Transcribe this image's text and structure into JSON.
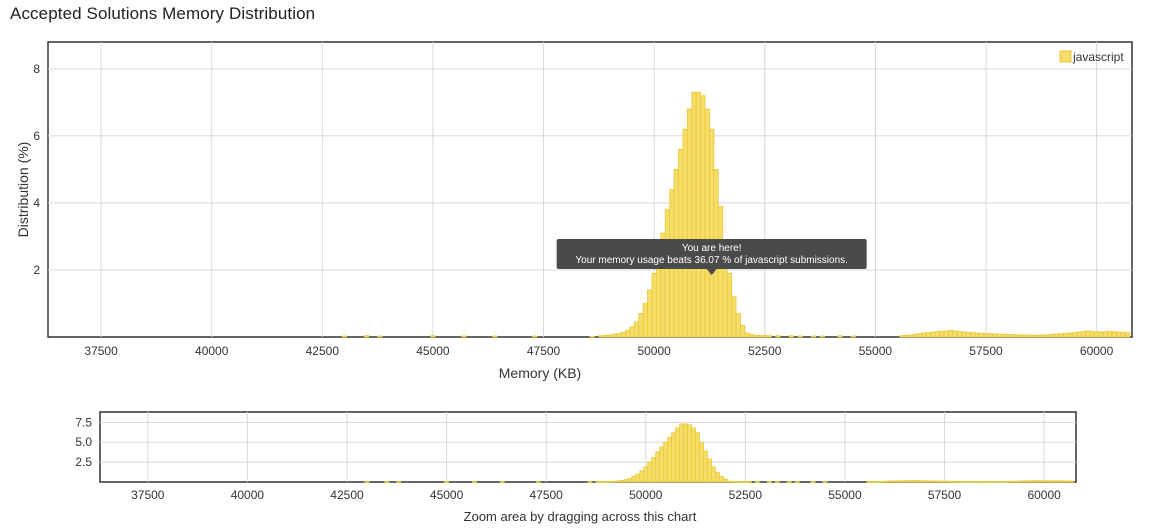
{
  "page": {
    "title": "Accepted Solutions Memory Distribution"
  },
  "chart_data": [
    {
      "type": "bar",
      "name": "main",
      "xlabel": "Memory (KB)",
      "ylabel": "Distribution (%)",
      "xlim": [
        36300,
        60800
      ],
      "ylim": [
        0,
        8.8
      ],
      "x_ticks": [
        37500,
        40000,
        42500,
        45000,
        47500,
        50000,
        52500,
        55000,
        57500,
        60000
      ],
      "y_ticks": [
        2,
        4,
        6,
        8
      ],
      "y_tick_labels": [
        "2",
        "4",
        "6",
        "8"
      ],
      "grid": true,
      "legend": {
        "position": "top-right",
        "entries": [
          "javascript"
        ]
      },
      "bar_color": "#f5dd68",
      "bar_edge_color": "#e8c93a",
      "annotation": {
        "title": "You are here!",
        "text": "Your memory usage beats 36.07 % of javascript submissions.",
        "x": 51300
      },
      "series": [
        {
          "name": "javascript",
          "bin_width": 100,
          "x": [
            43000,
            43500,
            43800,
            45000,
            45700,
            46400,
            47300,
            48600,
            48800,
            48900,
            49000,
            49100,
            49200,
            49300,
            49400,
            49500,
            49600,
            49700,
            49800,
            49900,
            50000,
            50100,
            50200,
            50300,
            50400,
            50500,
            50600,
            50700,
            50800,
            50900,
            51000,
            51100,
            51200,
            51300,
            51400,
            51500,
            51600,
            51700,
            51800,
            51900,
            52000,
            52100,
            52200,
            52300,
            52400,
            52500,
            52600,
            52800,
            53100,
            53300,
            53600,
            53800,
            54200,
            54500,
            55600,
            55700,
            55800,
            55900,
            56000,
            56100,
            56200,
            56300,
            56400,
            56500,
            56600,
            56700,
            56800,
            56900,
            57000,
            57100,
            57200,
            57300,
            57400,
            57500,
            57600,
            57700,
            57800,
            57900,
            58000,
            58100,
            58200,
            58300,
            58400,
            58500,
            58600,
            58700,
            58800,
            58900,
            59000,
            59100,
            59200,
            59300,
            59400,
            59500,
            59600,
            59700,
            59800,
            59900,
            60000,
            60100,
            60200,
            60300,
            60400,
            60500,
            60600,
            60700
          ],
          "values": [
            0.03,
            0.04,
            0.03,
            0.04,
            0.03,
            0.03,
            0.03,
            0.02,
            0.04,
            0.05,
            0.06,
            0.08,
            0.1,
            0.14,
            0.2,
            0.3,
            0.45,
            0.7,
            1.0,
            1.4,
            1.9,
            2.5,
            3.1,
            3.8,
            4.4,
            5.0,
            5.6,
            6.2,
            6.8,
            7.3,
            7.3,
            7.2,
            6.8,
            6.2,
            5.0,
            3.9,
            2.9,
            1.9,
            1.2,
            0.7,
            0.35,
            0.12,
            0.08,
            0.05,
            0.05,
            0.05,
            0.04,
            0.04,
            0.04,
            0.03,
            0.03,
            0.03,
            0.04,
            0.03,
            0.04,
            0.05,
            0.06,
            0.08,
            0.1,
            0.12,
            0.13,
            0.15,
            0.16,
            0.17,
            0.18,
            0.2,
            0.18,
            0.16,
            0.15,
            0.14,
            0.13,
            0.12,
            0.11,
            0.1,
            0.1,
            0.09,
            0.09,
            0.08,
            0.08,
            0.07,
            0.07,
            0.06,
            0.06,
            0.06,
            0.05,
            0.06,
            0.06,
            0.07,
            0.08,
            0.09,
            0.1,
            0.11,
            0.12,
            0.13,
            0.15,
            0.16,
            0.18,
            0.17,
            0.16,
            0.15,
            0.16,
            0.17,
            0.16,
            0.15,
            0.14,
            0.13
          ]
        }
      ]
    },
    {
      "type": "bar",
      "name": "navigator",
      "xlim": [
        36300,
        60800
      ],
      "ylim": [
        0,
        8.8
      ],
      "x_ticks": [
        37500,
        40000,
        42500,
        45000,
        47500,
        50000,
        52500,
        55000,
        57500,
        60000
      ],
      "y_ticks": [
        2.5,
        5.0,
        7.5
      ],
      "y_tick_labels": [
        "2.5",
        "5.0",
        "7.5"
      ],
      "grid": true,
      "xlabel": "Zoom area by dragging across this chart"
    }
  ]
}
